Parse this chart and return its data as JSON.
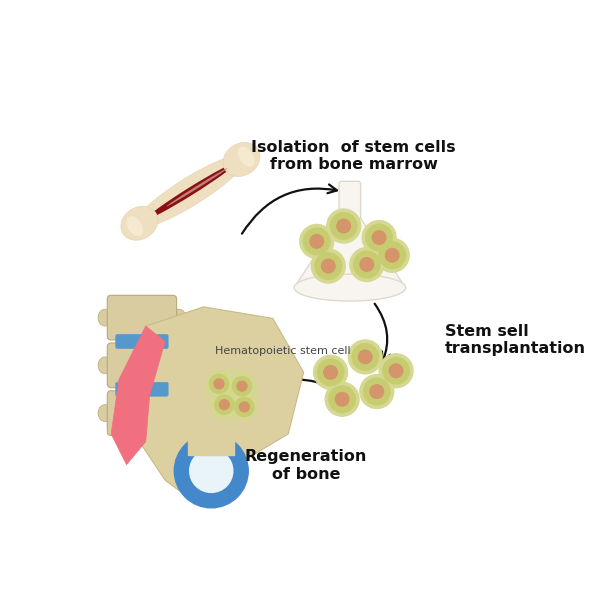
{
  "bg_color": "#ffffff",
  "labels": {
    "isolation": "Isolation  of stem cells\nfrom bone marrow",
    "stem_sell": "Stem sell\ntransplantation",
    "hematopoietic": "Hematopoietic stem cell",
    "regeneration": "Regeneration\nof bone"
  },
  "colors": {
    "bone_outer": "#eddfc0",
    "bone_outer2": "#e8d5b5",
    "bone_marrow": "#8B1010",
    "bone_marrow2": "#c08080",
    "flask_body": "#f8f5f0",
    "flask_outline": "#e0d8cc",
    "cell_outer": "#d4d890",
    "cell_mid": "#c8cc70",
    "cell_inner": "#d4956a",
    "pelvis_bone": "#ddd0a0",
    "pelvis_bone2": "#c8ba88",
    "pelvis_pink": "#f07080",
    "pelvis_blue": "#4488cc",
    "pelvis_blue_light": "#88bbee",
    "pelvis_white": "#e8f4f8",
    "spine_bone": "#d8cca0",
    "spine_blue": "#5599cc",
    "arrow_color": "#111111",
    "text_dark": "#111111",
    "text_small": "#444444"
  }
}
